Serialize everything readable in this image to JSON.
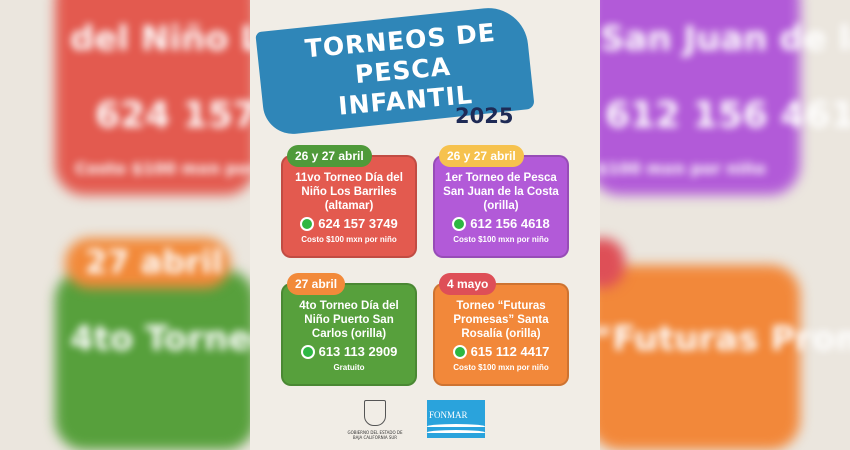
{
  "poster": {
    "title_line1": "TORNEOS DE",
    "title_line2": "PESCA INFANTIL",
    "year": "2025",
    "events": [
      {
        "date": "26 y 27 abril",
        "name": "11vo Torneo Día del Niño Los Barriles (altamar)",
        "phone": "624 157 3749",
        "cost": "Costo $100 mxn por niño",
        "card_color": "#e35a4f",
        "tag_color": "#4f9a3a"
      },
      {
        "date": "26 y 27 abril",
        "name": "1er Torneo de Pesca San Juan de la Costa (orilla)",
        "phone": "612 156 4618",
        "cost": "Costo $100 mxn por niño",
        "card_color": "#b25ad8",
        "tag_color": "#f6c24e"
      },
      {
        "date": "27 abril",
        "name": "4to Torneo Día del Niño Puerto San Carlos (orilla)",
        "phone": "613 113 2909",
        "cost": "Gratuito",
        "card_color": "#57a03c",
        "tag_color": "#f28a3a"
      },
      {
        "date": "4 mayo",
        "name": "Torneo “Futuras Promesas” Santa Rosalía (orilla)",
        "phone": "615 112 4417",
        "cost": "Costo $100 mxn por niño",
        "card_color": "#f2883a",
        "tag_color": "#de4f57"
      }
    ],
    "logos": {
      "gobierno": "GOBIERNO DEL ESTADO DE BAJA CALIFORNIA SUR",
      "fonmar": "FONMAR"
    }
  },
  "blurred_bg": {
    "left_top": "del Niño Los Barriles (altamar)",
    "left_phone": "624 157 3749",
    "left_cost": "Costo $100 mxn por niño",
    "left_date": "27 abril",
    "left_bottom": "4to Torneo Día del Niño Puerto San Carlos (orilla)",
    "right_top": "San Juan de la Costa (orilla)",
    "right_phone": "612 156 4618",
    "right_cost": "Costo $100 mxn por niño",
    "right_bottom": "“Futuras Promesas” Santa Rosalía (orilla)"
  }
}
